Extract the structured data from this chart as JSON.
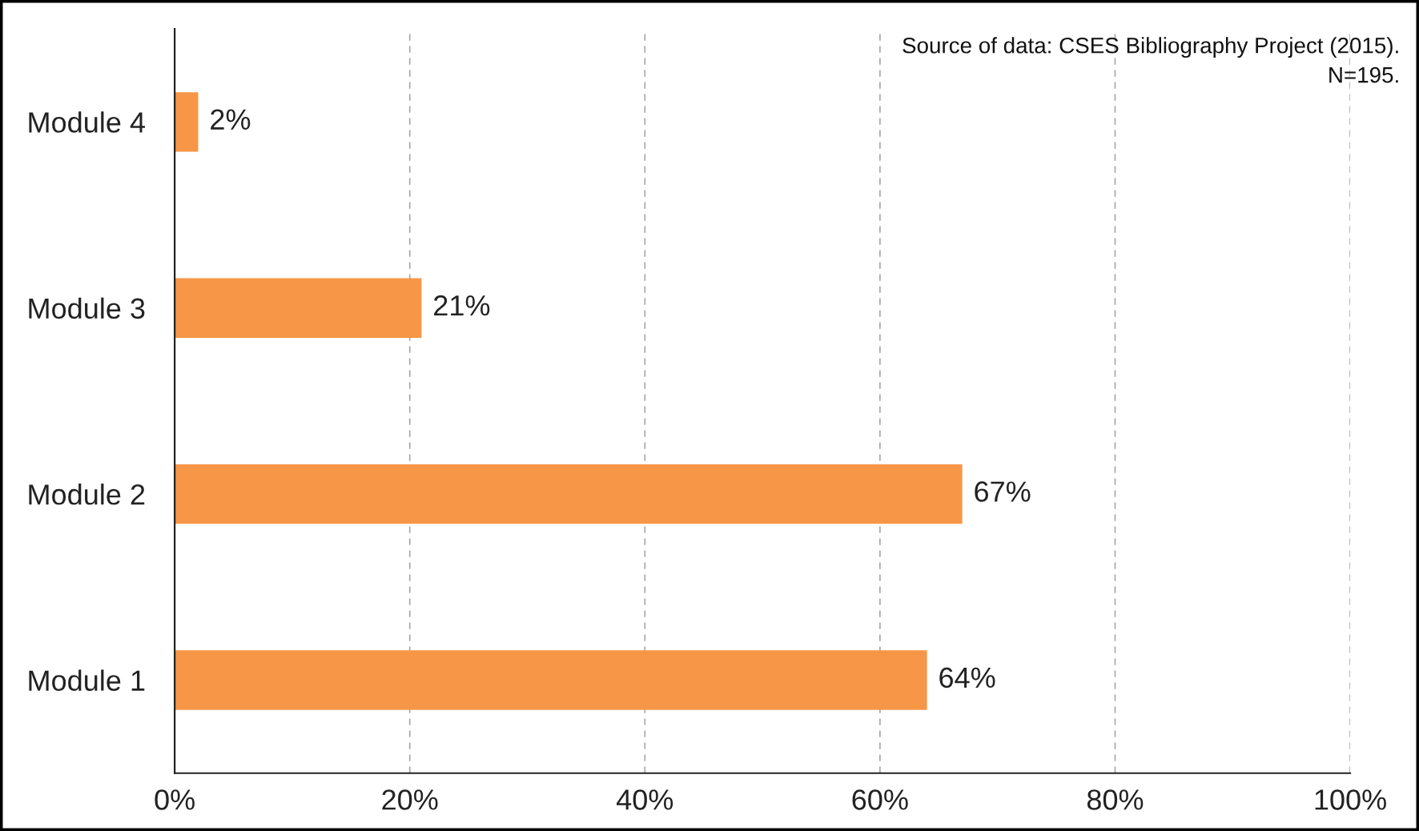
{
  "chart_data": {
    "type": "bar",
    "orientation": "horizontal",
    "categories": [
      "Module 4",
      "Module 3",
      "Module 2",
      "Module 1"
    ],
    "values": [
      2,
      21,
      67,
      64
    ],
    "color": "#f79646",
    "value_labels": [
      "2%",
      "21%",
      "67%",
      "64%"
    ],
    "xlim": [
      0,
      100
    ],
    "xticks": [
      {
        "value": 0,
        "label": "0%"
      },
      {
        "value": 20,
        "label": "20%"
      },
      {
        "value": 40,
        "label": "40%"
      },
      {
        "value": 60,
        "label": "60%"
      },
      {
        "value": 80,
        "label": "80%"
      },
      {
        "value": 100,
        "label": "100%"
      }
    ],
    "grid": "x",
    "annotations": [
      "Source of data: CSES Bibliography Project (2015).",
      "N=195."
    ]
  }
}
